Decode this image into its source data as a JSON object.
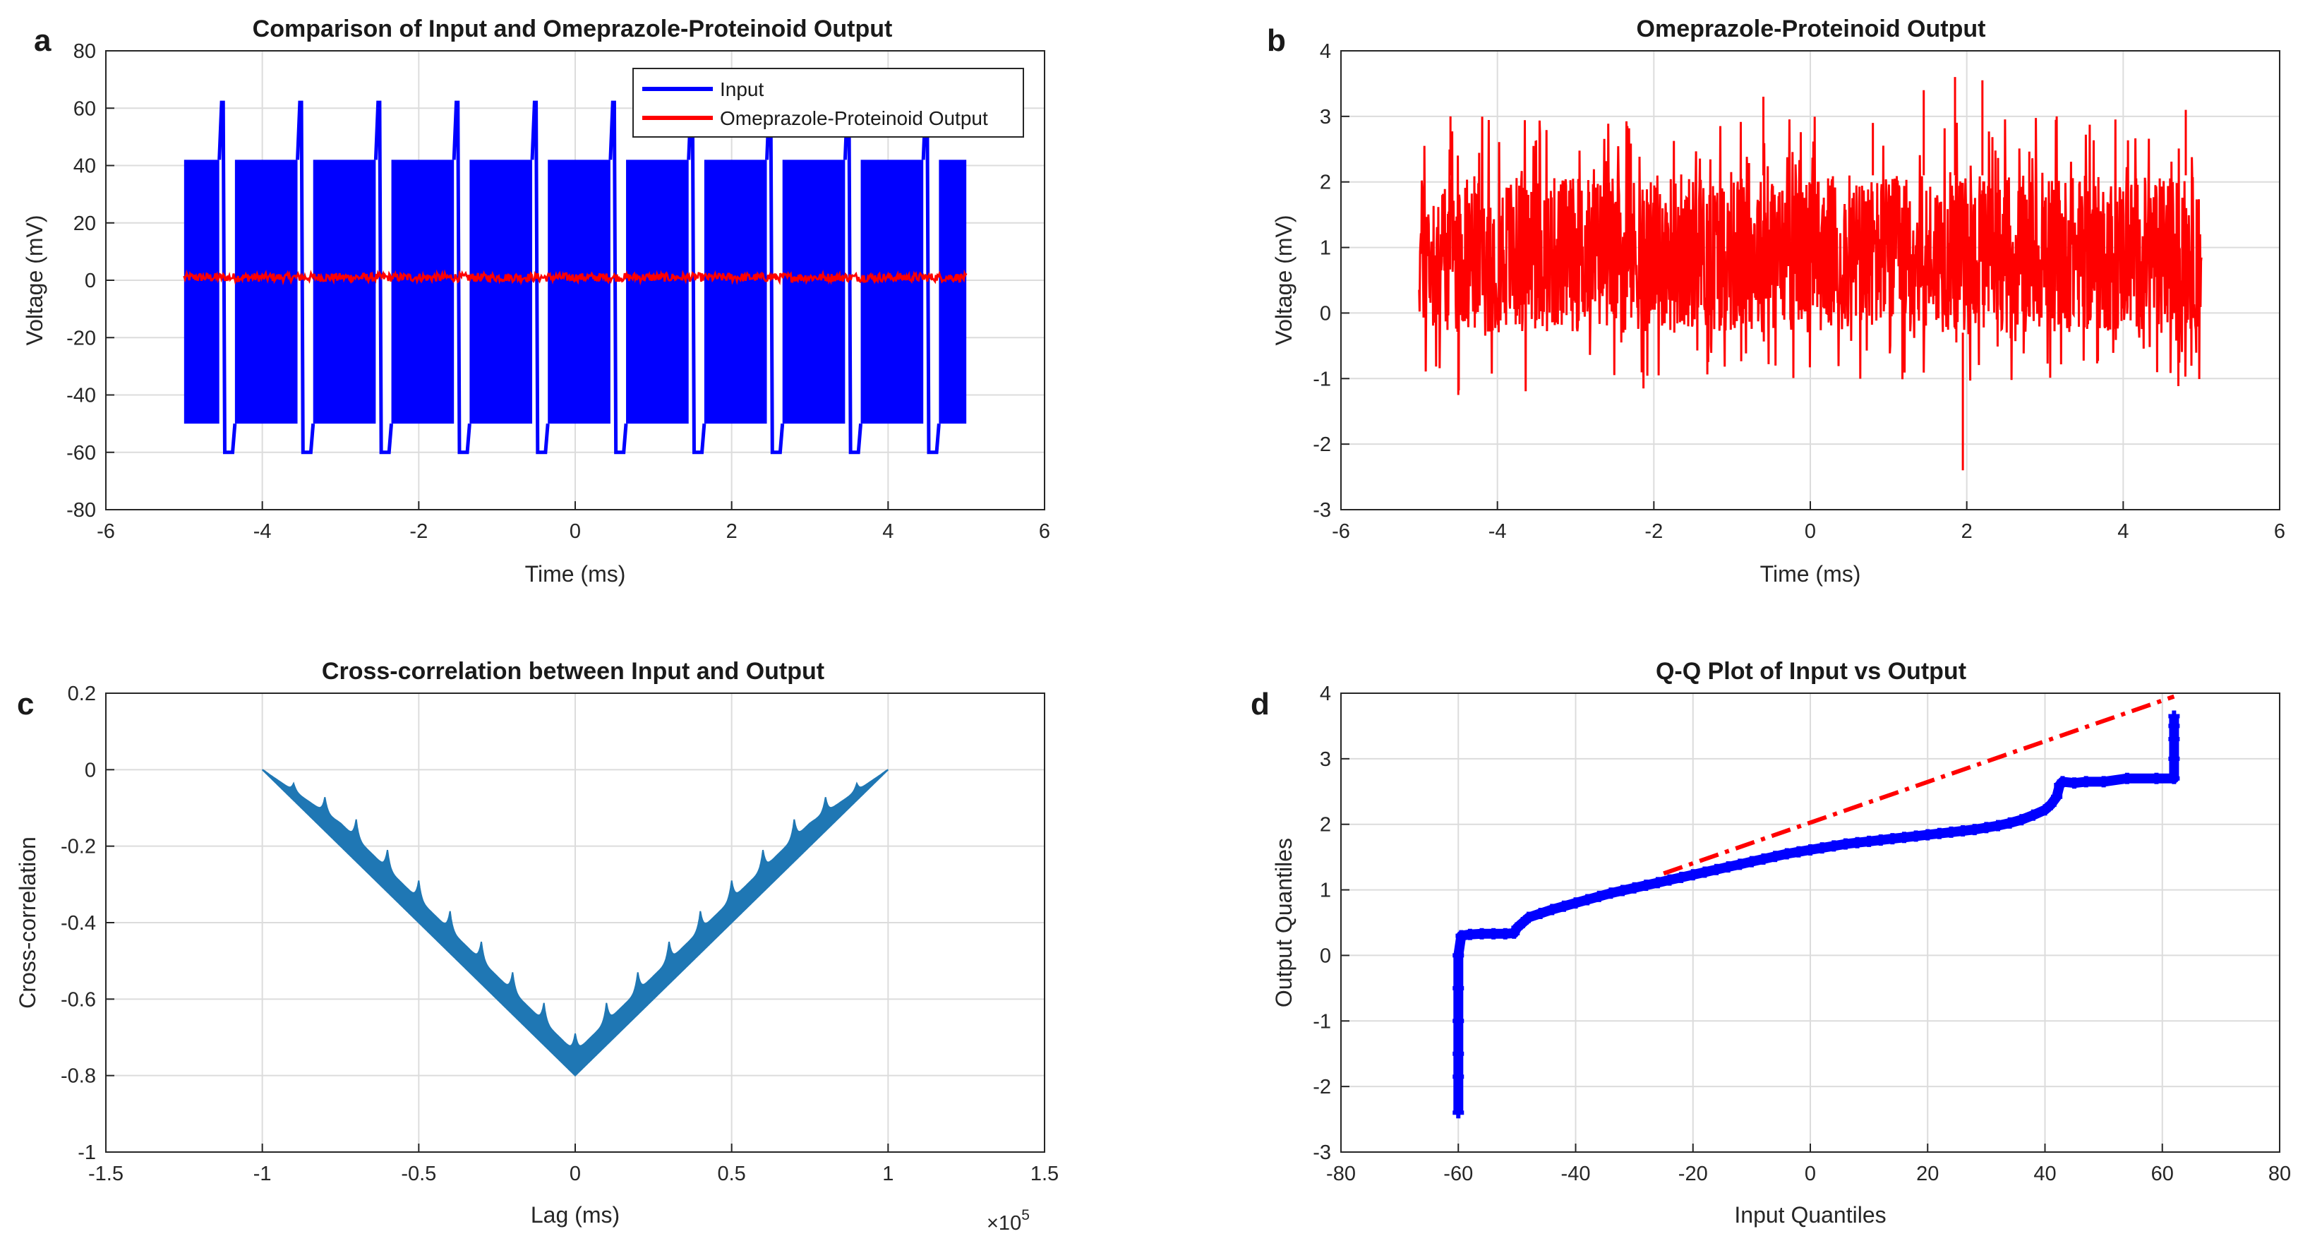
{
  "panels": [
    {
      "letter": "a"
    },
    {
      "letter": "b"
    },
    {
      "letter": "c"
    },
    {
      "letter": "d"
    }
  ],
  "chart_data": [
    {
      "type": "line",
      "title": "Comparison of Input and Omeprazole-Proteinoid Output",
      "xlabel": "Time (ms)",
      "ylabel": "Voltage (mV)",
      "xlim": [
        -6,
        6
      ],
      "ylim": [
        -80,
        80
      ],
      "xticks": [
        -6,
        -4,
        -2,
        0,
        2,
        4,
        6
      ],
      "yticks": [
        -80,
        -60,
        -40,
        -20,
        0,
        20,
        40,
        60,
        80
      ],
      "grid": true,
      "legend_position": "top-right",
      "series": [
        {
          "name": "Input",
          "color": "#0000ff",
          "x_range": [
            -5,
            5
          ],
          "dense_envelope": [
            -50,
            42
          ],
          "spikes": [
            {
              "x": -4.45,
              "high": 62,
              "low": -60
            },
            {
              "x": -3.45,
              "high": 62,
              "low": -60
            },
            {
              "x": -2.45,
              "high": 62,
              "low": -60
            },
            {
              "x": -1.45,
              "high": 62,
              "low": -60
            },
            {
              "x": -0.45,
              "high": 62,
              "low": -60
            },
            {
              "x": 0.55,
              "high": 62,
              "low": -60
            },
            {
              "x": 1.55,
              "high": 62,
              "low": -60
            },
            {
              "x": 2.55,
              "high": 62,
              "low": -60
            },
            {
              "x": 3.55,
              "high": 62,
              "low": -60
            },
            {
              "x": 4.55,
              "high": 62,
              "low": -60
            }
          ]
        },
        {
          "name": "Omeprazole-Proteinoid Output",
          "color": "#ff0000",
          "x_range": [
            -5,
            5
          ],
          "dense_envelope": [
            -0.5,
            2.5
          ]
        }
      ]
    },
    {
      "type": "line",
      "title": "Omeprazole-Proteinoid Output",
      "xlabel": "Time (ms)",
      "ylabel": "Voltage (mV)",
      "xlim": [
        -6,
        6
      ],
      "ylim": [
        -3,
        4
      ],
      "xticks": [
        -6,
        -4,
        -2,
        0,
        2,
        4,
        6
      ],
      "yticks": [
        -3,
        -2,
        -1,
        0,
        1,
        2,
        3,
        4
      ],
      "grid": true,
      "series": [
        {
          "color": "#ff0000",
          "x_range": [
            -5,
            5
          ],
          "typical_envelope": [
            -0.3,
            2.1
          ],
          "extremes": [
            {
              "x": -4.6,
              "value": 3.0
            },
            {
              "x": -4.5,
              "value": -1.25
            },
            {
              "x": -0.6,
              "value": 3.3
            },
            {
              "x": 0.8,
              "value": 2.9
            },
            {
              "x": 1.45,
              "value": 3.4
            },
            {
              "x": 1.85,
              "value": 3.6
            },
            {
              "x": 1.95,
              "value": -2.4
            },
            {
              "x": 2.2,
              "value": 3.55
            },
            {
              "x": 4.8,
              "value": 3.1
            }
          ]
        }
      ]
    },
    {
      "type": "area",
      "title": "Cross-correlation between Input and Output",
      "xlabel": "Lag (ms)",
      "ylabel": "Cross-correlation",
      "x_scale_label": "×10^5",
      "xlim": [
        -1.5,
        1.5
      ],
      "ylim": [
        -1,
        0.2
      ],
      "xticks": [
        -1.5,
        -1,
        -0.5,
        0,
        0.5,
        1,
        1.5
      ],
      "yticks": [
        -1,
        -0.8,
        -0.6,
        -0.4,
        -0.2,
        0,
        0.2
      ],
      "grid": true,
      "series": [
        {
          "color": "#1f77b4",
          "lower_envelope": {
            "x": [
              -1,
              0,
              1
            ],
            "y": [
              0,
              -0.8,
              0
            ]
          },
          "band_width": 0.06,
          "peak_spacing": 0.1
        }
      ]
    },
    {
      "type": "scatter",
      "title": "Q-Q Plot of Input vs Output",
      "xlabel": "Input Quantiles",
      "ylabel": "Output Quantiles",
      "xlim": [
        -80,
        80
      ],
      "ylim": [
        -3,
        4
      ],
      "xticks": [
        -80,
        -60,
        -40,
        -20,
        0,
        20,
        40,
        60,
        80
      ],
      "yticks": [
        -3,
        -2,
        -1,
        0,
        1,
        2,
        3,
        4
      ],
      "grid": true,
      "reference_line": {
        "x": [
          -25,
          62
        ],
        "y": [
          1.25,
          3.95
        ],
        "color": "#ff0000",
        "style": "dash-dot"
      },
      "series": [
        {
          "color": "#0000ff",
          "x": [
            -60,
            -60,
            -60,
            -60,
            -60,
            -60,
            -59.5,
            -58,
            -56,
            -54,
            -52,
            -50.5,
            -50,
            -49,
            -48,
            -46,
            -44,
            -42,
            -40,
            -38,
            -36,
            -34,
            -32,
            -30,
            -28,
            -26,
            -24,
            -22,
            -20,
            -18,
            -16,
            -14,
            -12,
            -10,
            -8,
            -6,
            -4,
            -2,
            0,
            2,
            4,
            6,
            8,
            10,
            12,
            14,
            16,
            18,
            20,
            22,
            24,
            26,
            28,
            30,
            32,
            34,
            36,
            38,
            40,
            41,
            42,
            42.5,
            43,
            45,
            47,
            50,
            54,
            59,
            62,
            62,
            62,
            62,
            62
          ],
          "y": [
            -2.4,
            -1.85,
            -1.5,
            -1.0,
            -0.5,
            0.0,
            0.3,
            0.32,
            0.33,
            0.33,
            0.33,
            0.34,
            0.42,
            0.5,
            0.58,
            0.64,
            0.7,
            0.75,
            0.8,
            0.85,
            0.9,
            0.95,
            0.99,
            1.03,
            1.07,
            1.11,
            1.15,
            1.19,
            1.23,
            1.27,
            1.31,
            1.35,
            1.39,
            1.43,
            1.47,
            1.51,
            1.55,
            1.58,
            1.61,
            1.64,
            1.67,
            1.7,
            1.72,
            1.74,
            1.76,
            1.78,
            1.8,
            1.82,
            1.84,
            1.86,
            1.88,
            1.9,
            1.92,
            1.95,
            1.98,
            2.02,
            2.07,
            2.14,
            2.22,
            2.3,
            2.42,
            2.6,
            2.65,
            2.63,
            2.65,
            2.65,
            2.7,
            2.7,
            2.7,
            3.0,
            3.3,
            3.5,
            3.65
          ]
        }
      ]
    }
  ]
}
